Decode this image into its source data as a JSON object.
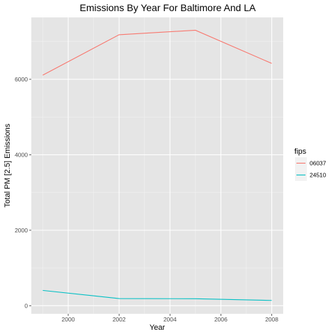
{
  "chart_data": {
    "type": "line",
    "title": "Emissions By Year For Baltimore And LA",
    "xlabel": "Year",
    "ylabel": "Total PM [2.5] Emissions",
    "x": [
      1999,
      2002,
      2005,
      2008
    ],
    "xlim": [
      1998.55,
      2008.45
    ],
    "ylim": [
      -215,
      7640
    ],
    "x_ticks": [
      2000,
      2002,
      2004,
      2006,
      2008
    ],
    "x_tick_labels": [
      "2000",
      "2002",
      "2004",
      "2006",
      "2008"
    ],
    "y_ticks": [
      0,
      2000,
      4000,
      6000
    ],
    "y_tick_labels": [
      "0",
      "2000",
      "4000",
      "6000"
    ],
    "grid": true,
    "background": "#e5e5e5",
    "legend": {
      "title": "fips",
      "position": "right"
    },
    "series": [
      {
        "name": "06037",
        "color": "#f8766d",
        "values": [
          6110,
          7180,
          7300,
          6420
        ]
      },
      {
        "name": "24510",
        "color": "#00bfc4",
        "values": [
          405,
          190,
          185,
          140
        ]
      }
    ]
  }
}
